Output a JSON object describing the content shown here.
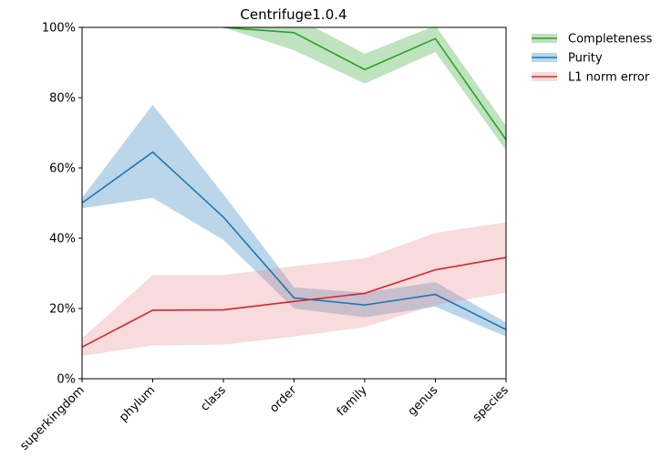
{
  "chart_data": {
    "type": "line",
    "title": "Centrifuge1.0.4",
    "xlabel": "",
    "ylabel": "",
    "categories": [
      "superkingdom",
      "phylum",
      "class",
      "order",
      "family",
      "genus",
      "species"
    ],
    "y_ticks": [
      "0%",
      "20%",
      "40%",
      "60%",
      "80%",
      "100%"
    ],
    "ylim": [
      0,
      1
    ],
    "grid": false,
    "legend": {
      "placement": "outside-top-right"
    },
    "series": [
      {
        "name": "Completeness",
        "color": "#2ca02c",
        "band_color": "#2ca02c",
        "values": [
          null,
          null,
          1.0,
          0.985,
          0.88,
          0.968,
          0.68
        ],
        "lower": [
          null,
          null,
          1.0,
          0.935,
          0.84,
          0.93,
          0.65
        ],
        "upper": [
          null,
          null,
          1.0,
          1.03,
          0.925,
          1.005,
          0.72
        ]
      },
      {
        "name": "Purity",
        "color": "#1f77b4",
        "band_color": "#1f77b4",
        "values": [
          0.5,
          0.645,
          0.46,
          0.23,
          0.21,
          0.24,
          0.14
        ],
        "lower": [
          0.485,
          0.515,
          0.395,
          0.2,
          0.175,
          0.205,
          0.12
        ],
        "upper": [
          0.515,
          0.78,
          0.525,
          0.26,
          0.245,
          0.275,
          0.16
        ]
      },
      {
        "name": "L1 norm error",
        "color": "#d62728",
        "band_color": "#e8888a",
        "values": [
          0.09,
          0.195,
          0.196,
          0.22,
          0.243,
          0.31,
          0.345
        ],
        "lower": [
          0.065,
          0.095,
          0.097,
          0.12,
          0.147,
          0.21,
          0.245
        ],
        "upper": [
          0.115,
          0.295,
          0.295,
          0.32,
          0.343,
          0.415,
          0.445
        ]
      }
    ]
  }
}
